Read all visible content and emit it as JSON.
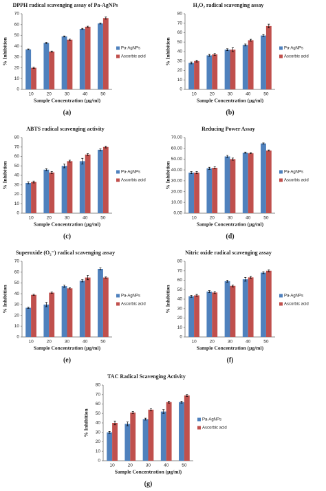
{
  "chart_data": [
    {
      "type": "bar",
      "title": "DPPH radical scavenging assay  of Pa-AgNPs",
      "panel_label": "(a)",
      "y_label": "% Inhibition",
      "x_label": "Sample Concentration (µg/ml)",
      "categories": [
        "10",
        "20",
        "30",
        "40",
        "50"
      ],
      "ylim": [
        0,
        70
      ],
      "yticks": [
        0,
        10,
        20,
        30,
        40,
        50,
        60,
        70
      ],
      "series": [
        {
          "name": "Pa-AgNPs",
          "color": "#4f81bd",
          "values": [
            37,
            43,
            49,
            56,
            61
          ],
          "errors": [
            0.5,
            0.5,
            0.5,
            0.5,
            0.5
          ]
        },
        {
          "name": "Ascorbic acid",
          "color": "#c0504d",
          "values": [
            20,
            35,
            46,
            58,
            66
          ],
          "errors": [
            0.5,
            0.5,
            0.5,
            0.5,
            1
          ]
        }
      ]
    },
    {
      "type": "bar",
      "title": "H₂O₂ radical scavenging assay",
      "panel_label": "(b)",
      "y_label": "% Inhibition",
      "x_label": "Sample Concentration (µg/ml)",
      "categories": [
        "10",
        "20",
        "30",
        "40",
        "50"
      ],
      "ylim": [
        0,
        80
      ],
      "yticks": [
        0,
        10,
        20,
        30,
        40,
        50,
        60,
        70,
        80
      ],
      "series": [
        {
          "name": "Pa-AgNPs",
          "color": "#4f81bd",
          "values": [
            28,
            36,
            42,
            47,
            57
          ],
          "errors": [
            1,
            1,
            1,
            1,
            1
          ]
        },
        {
          "name": "Ascorbic acid",
          "color": "#c0504d",
          "values": [
            30,
            37,
            42,
            52,
            67
          ],
          "errors": [
            1,
            1,
            2,
            1,
            2
          ]
        }
      ]
    },
    {
      "type": "bar",
      "title": "ABTS radical scavenging activity",
      "panel_label": "(c)",
      "y_label": "% Inhibition",
      "x_label": "Sample Concentration (µg/ml)",
      "categories": [
        "10",
        "20",
        "30",
        "40",
        "50"
      ],
      "ylim": [
        0,
        80
      ],
      "yticks": [
        0,
        10,
        20,
        30,
        40,
        50,
        60,
        70,
        80
      ],
      "series": [
        {
          "name": "Pa-AgNPs",
          "color": "#4f81bd",
          "values": [
            32,
            46,
            50,
            55,
            67
          ],
          "errors": [
            1,
            1,
            2,
            3,
            1
          ]
        },
        {
          "name": "Ascorbic acid",
          "color": "#c0504d",
          "values": [
            33,
            43,
            55,
            62,
            70
          ],
          "errors": [
            1,
            1,
            1,
            1,
            1
          ]
        }
      ]
    },
    {
      "type": "bar",
      "title": "Reducing Power Assay",
      "panel_label": "(d)",
      "y_label": "% Inhibition",
      "x_label": "Sample Concentration (µg/ml)",
      "categories": [
        "10",
        "20",
        "30",
        "40",
        "50"
      ],
      "ylim": [
        0,
        70
      ],
      "yticks": [
        {
          "value": 0,
          "label": "0.00"
        },
        {
          "value": 10,
          "label": "10.00"
        },
        {
          "value": 20,
          "label": "20.00"
        },
        {
          "value": 30,
          "label": "30.00"
        },
        {
          "value": 40,
          "label": "40.00"
        },
        {
          "value": 50,
          "label": "50.00"
        },
        {
          "value": 60,
          "label": "60.00"
        },
        {
          "value": 70,
          "label": "70.00"
        }
      ],
      "series": [
        {
          "name": "Pa-AgNPs",
          "color": "#4f81bd",
          "values": [
            37.5,
            41.5,
            52.5,
            56,
            64.5
          ],
          "errors": [
            1,
            1,
            1,
            0.5,
            0.5
          ]
        },
        {
          "name": "Ascorbic acid",
          "color": "#c0504d",
          "values": [
            37.5,
            42,
            50,
            55.5,
            58
          ],
          "errors": [
            1,
            1,
            1,
            0.5,
            0.5
          ]
        }
      ]
    },
    {
      "type": "bar",
      "title": "Superoxide (O₂⁻) radical scavenging assay",
      "panel_label": "(e)",
      "y_label": "% Inhibition",
      "x_label": "Sample Concentration (µg/ml)",
      "categories": [
        "10",
        "20",
        "30",
        "40",
        "50"
      ],
      "ylim": [
        0,
        70
      ],
      "yticks": [
        0,
        10,
        20,
        30,
        40,
        50,
        60,
        70
      ],
      "series": [
        {
          "name": "Pa-AgNPs",
          "color": "#4f81bd",
          "values": [
            27,
            30,
            47,
            52,
            63
          ],
          "errors": [
            0.5,
            2,
            1,
            1,
            1
          ]
        },
        {
          "name": "Ascorbic acid",
          "color": "#c0504d",
          "values": [
            39,
            41,
            45,
            55,
            55
          ],
          "errors": [
            0.5,
            0.5,
            0.5,
            2,
            0.5
          ]
        }
      ]
    },
    {
      "type": "bar",
      "title": "Nitric oxide radical scavenging assay",
      "panel_label": "(f)",
      "y_label": "% Inhibition",
      "x_label": "Sample Concentration (µg/ml)",
      "categories": [
        "10",
        "20",
        "30",
        "40",
        "50"
      ],
      "ylim": [
        0,
        80
      ],
      "yticks": [
        0,
        10,
        20,
        30,
        40,
        50,
        60,
        70,
        80
      ],
      "series": [
        {
          "name": "Pa-AgNPs",
          "color": "#4f81bd",
          "values": [
            43,
            48,
            59,
            61,
            68
          ],
          "errors": [
            1,
            1,
            1,
            2,
            1
          ]
        },
        {
          "name": "Ascorbic acid",
          "color": "#c0504d",
          "values": [
            44,
            47,
            54,
            63,
            70
          ],
          "errors": [
            1,
            1,
            1,
            1,
            1
          ]
        }
      ]
    },
    {
      "type": "bar",
      "title": "TAC Radical Scavenging Activity",
      "panel_label": "(g)",
      "y_label": "% Inhibition",
      "x_label": "Sample Concentration (µg/ml)",
      "categories": [
        "10",
        "20",
        "30",
        "40",
        "50"
      ],
      "ylim": [
        0,
        80
      ],
      "yticks": [
        0,
        10,
        20,
        30,
        40,
        50,
        60,
        70,
        80
      ],
      "series": [
        {
          "name": "Pa-AgNPs",
          "color": "#4f81bd",
          "values": [
            30,
            39,
            44,
            52,
            62
          ],
          "errors": [
            1,
            2,
            1,
            2,
            1
          ]
        },
        {
          "name": "Ascorbic acid",
          "color": "#c0504d",
          "values": [
            40,
            51,
            54,
            62,
            69
          ],
          "errors": [
            2,
            1,
            1,
            1,
            1
          ]
        }
      ]
    }
  ]
}
